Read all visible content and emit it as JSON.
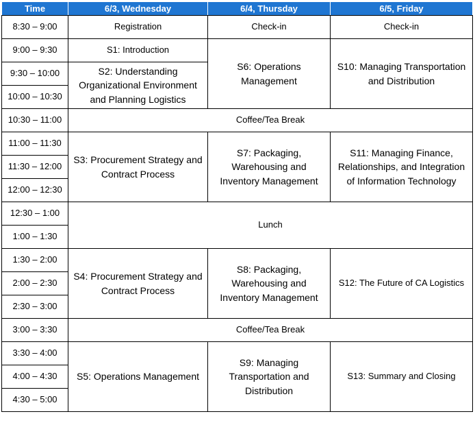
{
  "headers": {
    "time": "Time",
    "day1": "6/3, Wednesday",
    "day2": "6/4, Thursday",
    "day3": "6/5, Friday"
  },
  "times": [
    "8:30 – 9:00",
    "9:00 – 9:30",
    "9:30 – 10:00",
    "10:00 – 10:30",
    "10:30 – 11:00",
    "11:00 – 11:30",
    "11:30 – 12:00",
    "12:00 – 12:30",
    "12:30 – 1:00",
    "1:00 – 1:30",
    "1:30 – 2:00",
    "2:00 – 2:30",
    "2:30 – 3:00",
    "3:00 – 3:30",
    "3:30 – 4:00",
    "4:00 – 4:30",
    "4:30 – 5:00"
  ],
  "sessions": {
    "registration": "Registration",
    "checkin_thu": "Check-in",
    "checkin_fri": "Check-in",
    "s1": "S1: Introduction",
    "s2": "S2: Understanding Organizational Environment and Planning Logistics",
    "s3": "S3: Procurement Strategy and Contract Process",
    "s4": "S4: Procurement Strategy and Contract Process",
    "s5": "S5: Operations Management",
    "s6": "S6: Operations Management",
    "s7": "S7: Packaging, Warehousing and Inventory Management",
    "s8": "S8: Packaging, Warehousing and Inventory Management",
    "s9": "S9: Managing Transportation and Distribution",
    "s10": "S10: Managing Transportation and Distribution",
    "s11": "S11: Managing Finance, Relationships, and Integration of Information Technology",
    "s12": "S12: The Future of CA Logistics",
    "s13": "S13: Summary and Closing",
    "break_am": "Coffee/Tea Break",
    "lunch": "Lunch",
    "break_pm": "Coffee/Tea Break"
  },
  "colors": {
    "header_bg": "#1f76d2",
    "header_text": "#ffffff"
  }
}
